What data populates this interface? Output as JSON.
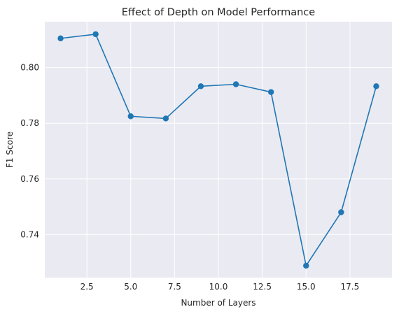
{
  "chart_data": {
    "type": "line",
    "title": "Effect of Depth on Model Performance",
    "xlabel": "Number of Layers",
    "ylabel": "F1 Score",
    "xlim": [
      0.1,
      19.9
    ],
    "ylim": [
      0.7245,
      0.8165
    ],
    "xticks": [
      2.5,
      5.0,
      7.5,
      10.0,
      12.5,
      15.0,
      17.5
    ],
    "xtick_labels": [
      "2.5",
      "5.0",
      "7.5",
      "10.0",
      "12.5",
      "15.0",
      "17.5"
    ],
    "yticks": [
      0.74,
      0.76,
      0.78,
      0.8
    ],
    "ytick_labels": [
      "0.74",
      "0.76",
      "0.78",
      "0.80"
    ],
    "grid": true,
    "series": [
      {
        "color": "#1f77b4",
        "marker": "circle",
        "x": [
          1,
          3,
          5,
          7,
          9,
          11,
          13,
          15,
          17,
          19
        ],
        "y": [
          0.8105,
          0.812,
          0.7825,
          0.7817,
          0.7933,
          0.794,
          0.7912,
          0.7288,
          0.748,
          0.7933
        ]
      }
    ]
  }
}
